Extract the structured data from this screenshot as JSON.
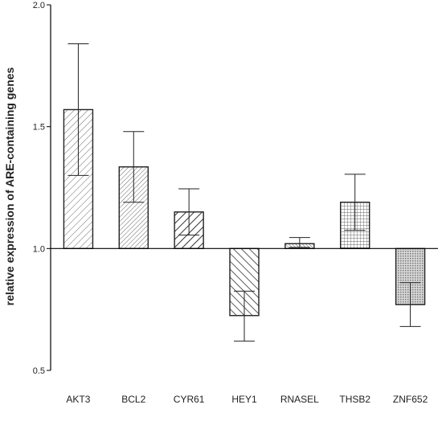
{
  "chart_data": {
    "type": "bar",
    "title": "",
    "xlabel": "",
    "ylabel": "relative expression of ARE-containing genes",
    "ylim": [
      0.5,
      2.0
    ],
    "yticks": [
      "0.5",
      "1.0",
      "1.5",
      "2.0"
    ],
    "baseline": 1.0,
    "grid": false,
    "legend": "none",
    "categories": [
      "AKT3",
      "BCL2",
      "CYR61",
      "HEY1",
      "RNASEL",
      "THSB2",
      "ZNF652"
    ],
    "values": [
      1.57,
      1.335,
      1.15,
      0.725,
      1.02,
      1.19,
      0.77
    ],
    "error_low": [
      1.3,
      1.19,
      1.055,
      0.62,
      1.005,
      1.075,
      0.68
    ],
    "error_high": [
      1.84,
      1.48,
      1.245,
      0.825,
      1.045,
      1.305,
      0.86
    ],
    "patterns": [
      "diag-right",
      "diag-right-fine",
      "diag-right-bold",
      "diag-left",
      "diag-left-fine",
      "crosshatch",
      "dots"
    ],
    "colors": {
      "axis": "#000000",
      "bar_stroke": "#222222",
      "hatch": "#444444"
    }
  }
}
